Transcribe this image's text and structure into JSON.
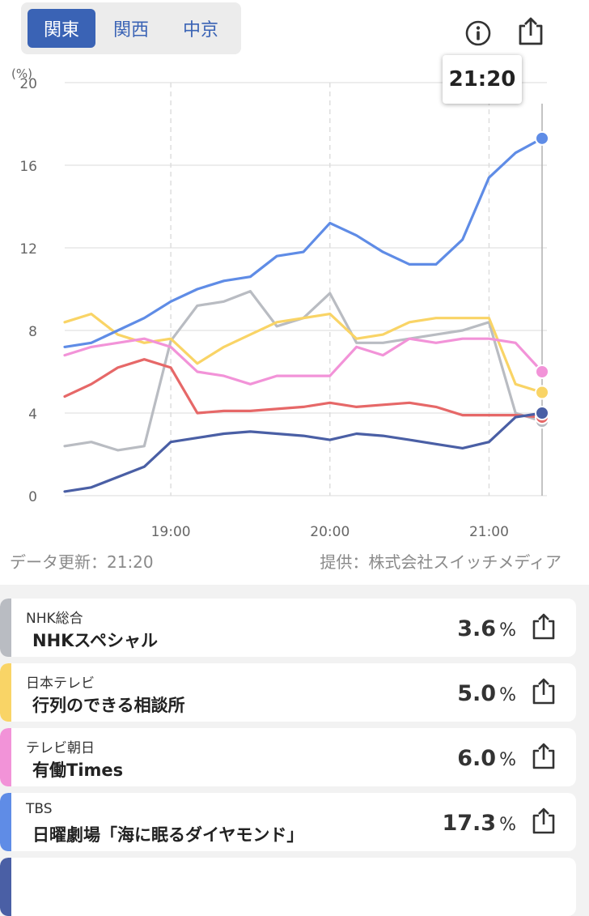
{
  "regions": [
    {
      "label": "関東",
      "active": true
    },
    {
      "label": "関西",
      "active": false
    },
    {
      "label": "中京",
      "active": false
    }
  ],
  "icons": {
    "info": "info-circle-icon",
    "share": "share-icon"
  },
  "time_bubble": "21:20",
  "footer": {
    "updated": "データ更新：21:20",
    "provider": "提供：株式会社スイッチメディア"
  },
  "chart_data": {
    "type": "line",
    "ylabel": "(%)",
    "ylim": [
      0,
      20
    ],
    "yticks": [
      "0",
      "4",
      "8",
      "12",
      "16",
      "20"
    ],
    "xlabels": [
      "19:00",
      "20:00",
      "21:00"
    ],
    "x": [
      "18:20",
      "18:30",
      "18:40",
      "18:50",
      "19:00",
      "19:10",
      "19:20",
      "19:30",
      "19:40",
      "19:50",
      "20:00",
      "20:10",
      "20:20",
      "20:30",
      "20:40",
      "20:50",
      "21:00",
      "21:10",
      "21:20"
    ],
    "series": [
      {
        "name": "NHK総合",
        "color": "#b9bcc2",
        "values": [
          2.4,
          2.6,
          2.2,
          2.4,
          7.5,
          9.2,
          9.4,
          9.9,
          8.2,
          8.6,
          9.8,
          7.4,
          7.4,
          7.6,
          7.8,
          8.0,
          8.4,
          4.0,
          3.6
        ]
      },
      {
        "name": "日本テレビ",
        "color": "#f9d466",
        "values": [
          8.4,
          8.8,
          7.8,
          7.4,
          7.6,
          6.4,
          7.2,
          7.8,
          8.4,
          8.6,
          8.8,
          7.6,
          7.8,
          8.4,
          8.6,
          8.6,
          8.6,
          5.4,
          5.0
        ]
      },
      {
        "name": "テレビ朝日",
        "color": "#f293d8",
        "values": [
          6.8,
          7.2,
          7.4,
          7.6,
          7.2,
          6.0,
          5.8,
          5.4,
          5.8,
          5.8,
          5.8,
          7.2,
          6.8,
          7.6,
          7.4,
          7.6,
          7.6,
          7.4,
          6.0
        ]
      },
      {
        "name": "TBS",
        "color": "#5f8ce6",
        "values": [
          7.2,
          7.4,
          8.0,
          8.6,
          9.4,
          10.0,
          10.4,
          10.6,
          11.6,
          11.8,
          13.2,
          12.6,
          11.8,
          11.2,
          11.2,
          12.4,
          15.4,
          16.6,
          17.3
        ]
      },
      {
        "name": "",
        "color": "#e66868",
        "values": [
          4.8,
          5.4,
          6.2,
          6.6,
          6.2,
          4.0,
          4.1,
          4.1,
          4.2,
          4.3,
          4.5,
          4.3,
          4.4,
          4.5,
          4.3,
          3.9,
          3.9,
          3.9,
          3.8
        ]
      },
      {
        "name": "",
        "color": "#4a5fa5",
        "values": [
          0.2,
          0.4,
          0.9,
          1.4,
          2.6,
          2.8,
          3.0,
          3.1,
          3.0,
          2.9,
          2.7,
          3.0,
          2.9,
          2.7,
          2.5,
          2.3,
          2.6,
          3.8,
          4.0
        ]
      }
    ],
    "grid": true,
    "cursor_time": "21:20"
  },
  "programs": [
    {
      "channel": "NHK総合",
      "title": "NHKスペシャル",
      "rate": "3.6",
      "unit": "%",
      "color": "#b9bcc2"
    },
    {
      "channel": "日本テレビ",
      "title": "行列のできる相談所",
      "rate": "5.0",
      "unit": "%",
      "color": "#f9d466"
    },
    {
      "channel": "テレビ朝日",
      "title": "有働Times",
      "rate": "6.0",
      "unit": "%",
      "color": "#f293d8"
    },
    {
      "channel": "TBS",
      "title": "日曜劇場「海に眠るダイヤモンド」",
      "rate": "17.3",
      "unit": "%",
      "color": "#5f8ce6"
    }
  ],
  "next_card_color": "#4a5fa5"
}
